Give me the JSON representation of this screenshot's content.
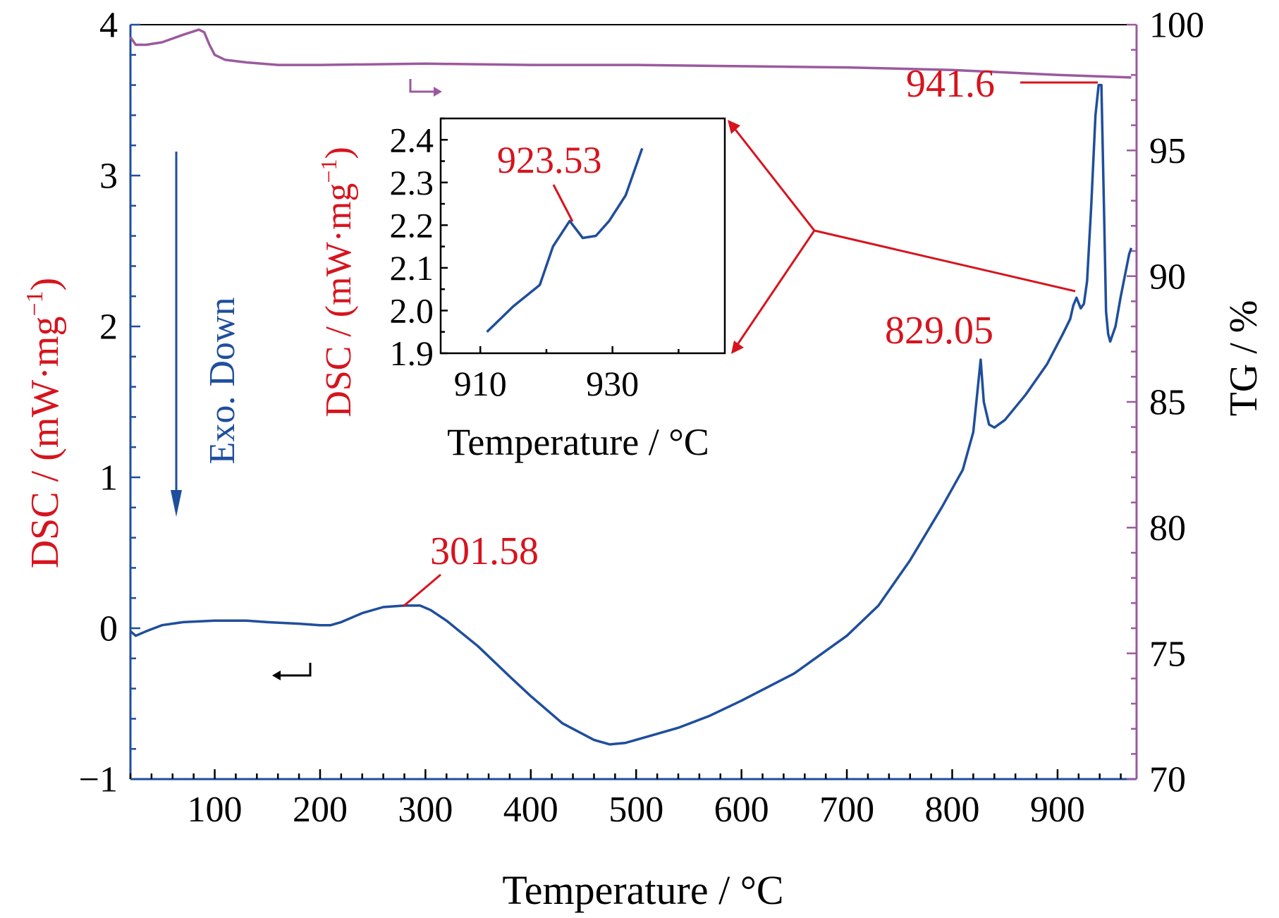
{
  "colors": {
    "dsc_curve": "#1f4e9c",
    "tg_curve": "#9b5a9e",
    "annotation": "#d6141e",
    "axis": "#000000",
    "exo_label": "#1f4e9c"
  },
  "chart_data": [
    {
      "type": "line",
      "id": "main",
      "xlabel": "Temperature / °C",
      "ylabel": "DSC / (mW·mg",
      "ylabel_sup": "−1",
      "ylabel_close": ")",
      "y2label": "TG / %",
      "xlim": [
        20,
        975
      ],
      "ylim": [
        -1,
        4
      ],
      "y2lim": [
        70,
        100
      ],
      "x_ticks": [
        100,
        200,
        300,
        400,
        500,
        600,
        700,
        800,
        900
      ],
      "x_tick_labels": [
        "100",
        "200",
        "300",
        "400",
        "500",
        "600",
        "700",
        "800",
        "900"
      ],
      "y_ticks": [
        -1,
        0,
        1,
        2,
        3,
        4
      ],
      "y_tick_labels": [
        "−1",
        "0",
        "1",
        "2",
        "3",
        "4"
      ],
      "y2_ticks": [
        70,
        75,
        80,
        85,
        90,
        95,
        100
      ],
      "y2_tick_labels": [
        "70",
        "75",
        "80",
        "85",
        "90",
        "95",
        "100"
      ],
      "series": [
        {
          "axis": "left",
          "x": [
            20,
            25,
            35,
            50,
            70,
            100,
            130,
            150,
            180,
            200,
            210,
            220,
            240,
            260,
            280,
            295,
            305,
            320,
            350,
            380,
            400,
            430,
            460,
            475,
            490,
            510,
            540,
            570,
            600,
            650,
            700,
            730,
            760,
            790,
            810,
            820,
            827,
            830,
            835,
            840,
            850,
            870,
            890,
            905,
            912,
            915,
            918,
            922,
            925,
            928,
            932,
            936,
            939,
            941.6,
            944,
            946,
            948,
            950,
            955,
            960,
            968,
            970
          ],
          "y": [
            -0.02,
            -0.05,
            -0.02,
            0.02,
            0.04,
            0.05,
            0.05,
            0.04,
            0.03,
            0.02,
            0.02,
            0.04,
            0.1,
            0.14,
            0.15,
            0.15,
            0.12,
            0.05,
            -0.12,
            -0.32,
            -0.45,
            -0.63,
            -0.74,
            -0.77,
            -0.76,
            -0.72,
            -0.66,
            -0.58,
            -0.48,
            -0.3,
            -0.05,
            0.15,
            0.45,
            0.8,
            1.05,
            1.3,
            1.78,
            1.5,
            1.35,
            1.33,
            1.38,
            1.55,
            1.75,
            1.95,
            2.05,
            2.14,
            2.19,
            2.12,
            2.15,
            2.3,
            2.8,
            3.4,
            3.6,
            3.6,
            2.8,
            2.1,
            1.95,
            1.9,
            2.0,
            2.2,
            2.48,
            2.52
          ]
        },
        {
          "axis": "right",
          "x": [
            20,
            25,
            35,
            50,
            70,
            85,
            90,
            95,
            100,
            110,
            130,
            160,
            200,
            300,
            400,
            500,
            600,
            700,
            800,
            900,
            970
          ],
          "y": [
            99.5,
            99.2,
            99.2,
            99.3,
            99.6,
            99.8,
            99.7,
            99.2,
            98.8,
            98.6,
            98.5,
            98.4,
            98.4,
            98.45,
            98.4,
            98.4,
            98.35,
            98.3,
            98.2,
            98.0,
            97.9
          ]
        }
      ],
      "annotations": [
        {
          "label": "301.58",
          "x": 285,
          "y": 0.15
        },
        {
          "label": "829.05",
          "x": 829.05,
          "y": 1.78
        },
        {
          "label": "941.6",
          "x": 941.6,
          "y": 3.6
        }
      ],
      "exo_label": "Exo. Down"
    },
    {
      "type": "line",
      "id": "inset",
      "xlabel": "Temperature / °C",
      "ylabel": "DSC / (mW·mg",
      "ylabel_sup": "−1",
      "ylabel_close": ")",
      "xlim": [
        904,
        947
      ],
      "ylim": [
        1.9,
        2.45
      ],
      "x_ticks": [
        910,
        930
      ],
      "x_tick_labels": [
        "910",
        "930"
      ],
      "y_ticks": [
        1.9,
        2.0,
        2.1,
        2.2,
        2.3,
        2.4
      ],
      "y_tick_labels": [
        "1.9",
        "2.0",
        "2.1",
        "2.2",
        "2.3",
        "2.4"
      ],
      "series": [
        {
          "axis": "left",
          "x": [
            911,
            915,
            919,
            921,
            923.53,
            925.5,
            927.5,
            929.5,
            932,
            934.5
          ],
          "y": [
            1.95,
            2.01,
            2.06,
            2.15,
            2.21,
            2.17,
            2.175,
            2.21,
            2.27,
            2.38
          ]
        }
      ],
      "annotations": [
        {
          "label": "923.53",
          "x": 923.53,
          "y": 2.21
        }
      ]
    }
  ]
}
